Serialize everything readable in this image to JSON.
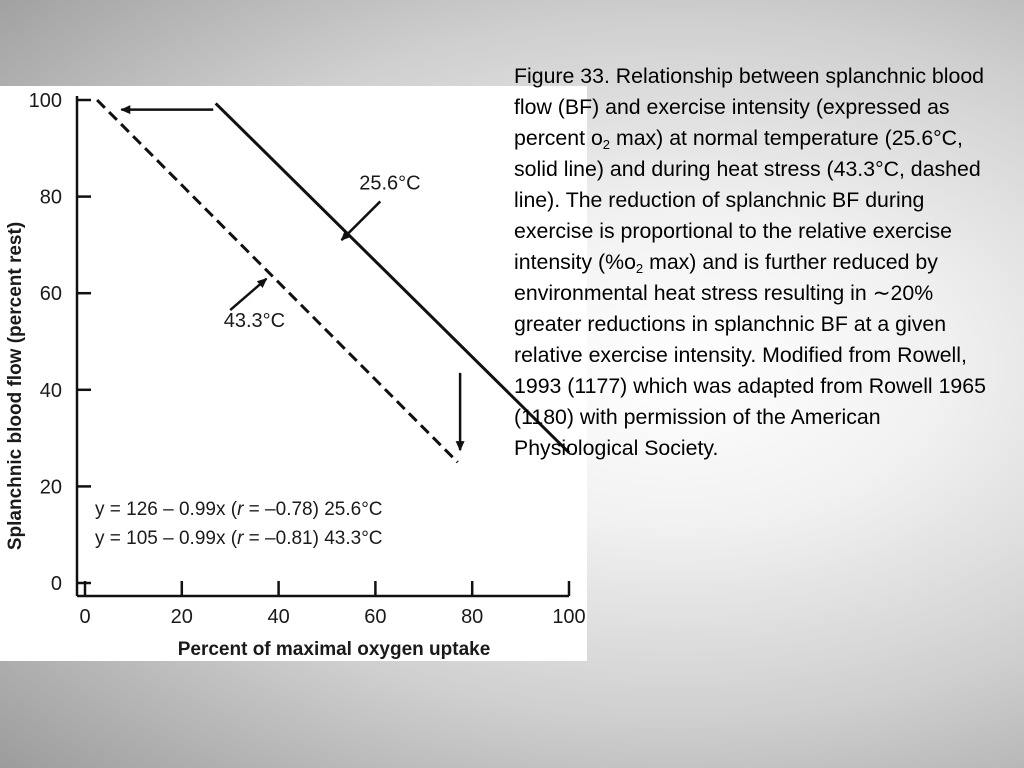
{
  "caption": {
    "parts": [
      "Figure 33. Relationship between splanchnic blood flow (BF) and exercise intensity (expressed as percent o",
      "2",
      " max) at normal temperature (25.6°C, solid line) and during heat stress (43.3°C, dashed line). The reduction of splanchnic BF during exercise is proportional to the relative exercise intensity (%o",
      "2",
      " max) and is further reduced by environmental heat stress resulting in ∼20% greater reductions in splanchnic BF at a given relative exercise intensity. Modified from Rowell, 1993 (1177) which was adapted from Rowell 1965 (1180) with permission of the American Physiological Society."
    ]
  },
  "chart_data": {
    "type": "line",
    "xlabel": "Percent of maximal oxygen uptake",
    "ylabel": "Splanchnic blood flow (percent rest)",
    "xlim": [
      0,
      100
    ],
    "ylim": [
      0,
      100
    ],
    "xticks": [
      0,
      20,
      40,
      60,
      80,
      100
    ],
    "yticks": [
      0,
      20,
      40,
      60,
      80,
      100
    ],
    "grid": false,
    "series": [
      {
        "name": "25.6°C",
        "style": "solid",
        "points": [
          [
            27,
            99.3
          ],
          [
            100,
            27
          ]
        ]
      },
      {
        "name": "43.3°C",
        "style": "dashed",
        "points": [
          [
            2.5,
            100
          ],
          [
            77,
            25
          ]
        ]
      }
    ],
    "annotations": [
      {
        "text": "25.6°C",
        "label_at": [
          63,
          81.5
        ],
        "arrow_from": [
          61,
          79
        ],
        "arrow_to": [
          53,
          71
        ]
      },
      {
        "text": "43.3°C",
        "label_at": [
          35,
          53
        ],
        "arrow_from": [
          30,
          56.5
        ],
        "arrow_to": [
          37.5,
          63
        ]
      }
    ],
    "arrows": [
      {
        "from": [
          26.5,
          98
        ],
        "to": [
          7.5,
          98
        ]
      },
      {
        "from": [
          77.5,
          43.5
        ],
        "to": [
          77.5,
          27.5
        ]
      }
    ],
    "equations": [
      {
        "pre": "y = 126 – 0.99x (",
        "var": "r",
        "post": " = –0.78) 25.6°C"
      },
      {
        "pre": "y = 105 – 0.99x (",
        "var": "r",
        "post": " = –0.81) 43.3°C"
      }
    ]
  }
}
